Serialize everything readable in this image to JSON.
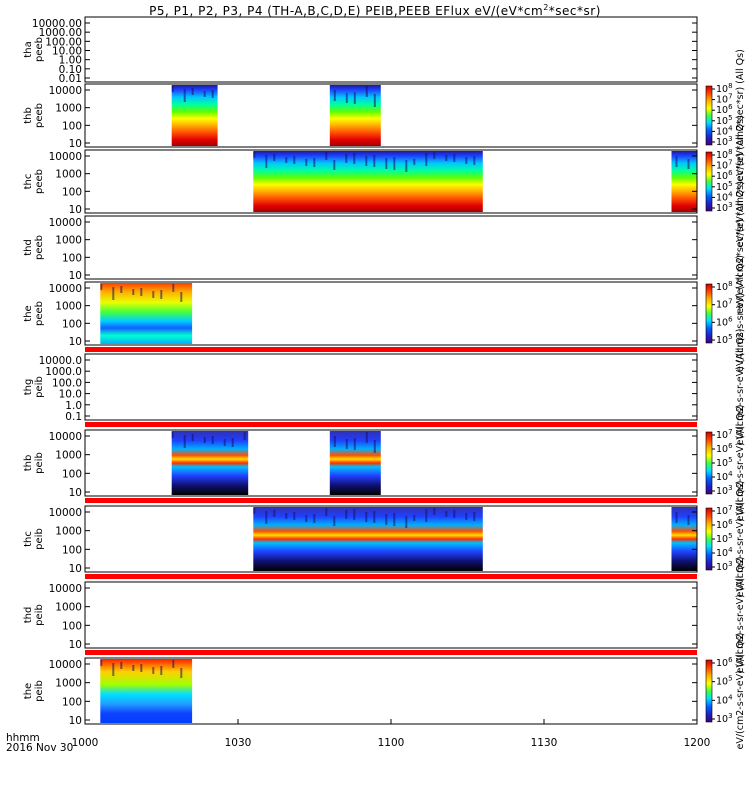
{
  "title_parts": [
    "P5, P1, P2, P3, P4 (TH-A,B,C,D,E) PEIB,PEEB EFlux eV/(eV*cm",
    "2",
    "*sec*sr)"
  ],
  "chart_data": {
    "type": "heatmap",
    "x_axis": {
      "range": [
        "10:00",
        "12:00"
      ],
      "tick_labels": [
        "1000",
        "1030",
        "1100",
        "1130",
        "1200"
      ],
      "label_lines": [
        "hhmm",
        "2016 Nov 30"
      ]
    },
    "panels": [
      {
        "probe": "tha",
        "instrument": "peeb",
        "y_ticks": [
          "10000.00",
          "1000.00",
          "100.00",
          "10.00",
          "1.00",
          "0.10",
          "0.01"
        ],
        "y_scale": "log",
        "segments": [],
        "red_band": false,
        "colorbar": null,
        "colorbar_label": ""
      },
      {
        "probe": "thb",
        "instrument": "peeb",
        "y_ticks": [
          "10000",
          "1000",
          "100",
          "10"
        ],
        "y_scale": "log",
        "segments": [
          [
            "10:17",
            "10:26"
          ],
          [
            "10:48",
            "10:58"
          ]
        ],
        "style": "electron",
        "red_band": false,
        "colorbar": {
          "ticks": [
            "10^8",
            "10^7",
            "10^6",
            "10^5",
            "10^4",
            "10^3"
          ],
          "max_exp": 8,
          "min_exp": 3
        },
        "colorbar_label": "eV/(eV*cm2*sec*sr) (All Qs)"
      },
      {
        "probe": "thc",
        "instrument": "peeb",
        "y_ticks": [
          "10000",
          "1000",
          "100",
          "10"
        ],
        "y_scale": "log",
        "segments": [
          [
            "10:33",
            "11:18"
          ],
          [
            "11:55",
            "12:00"
          ]
        ],
        "style": "electron",
        "red_band": false,
        "colorbar": {
          "ticks": [
            "10^8",
            "10^7",
            "10^6",
            "10^5",
            "10^4",
            "10^3"
          ],
          "max_exp": 8,
          "min_exp": 3
        },
        "colorbar_label": "eV/(eV*cm2*sec*sr) (All Qs)"
      },
      {
        "probe": "thd",
        "instrument": "peeb",
        "y_ticks": [
          "10000",
          "1000",
          "100",
          "10"
        ],
        "y_scale": "log",
        "segments": [],
        "red_band": false,
        "colorbar": null,
        "colorbar_label": "eV/(eV*cm2*sec*sr) (All Qs)"
      },
      {
        "probe": "the",
        "instrument": "peeb",
        "y_ticks": [
          "10000",
          "1000",
          "100",
          "10"
        ],
        "y_scale": "log",
        "segments": [
          [
            "10:03",
            "10:21"
          ]
        ],
        "style": "electron",
        "red_band": true,
        "colorbar": {
          "ticks": [
            "10^8",
            "10^7",
            "10^6",
            "10^5"
          ],
          "max_exp": 8,
          "min_exp": 5
        },
        "colorbar_label": "eV/(cm2-s-sr-eV) (All Qs)"
      },
      {
        "probe": "thg",
        "instrument": "peib",
        "y_ticks": [
          "10000.0",
          "1000.0",
          "100.0",
          "10.0",
          "1.0",
          "0.1"
        ],
        "y_scale": "log",
        "segments": [],
        "red_band": true,
        "colorbar": null,
        "colorbar_label": "eV/(cm2-s-sr-eV) (All Qs)"
      },
      {
        "probe": "thb",
        "instrument": "peib",
        "y_ticks": [
          "10000",
          "1000",
          "100",
          "10"
        ],
        "y_scale": "log",
        "segments": [
          [
            "10:17",
            "10:32"
          ],
          [
            "10:48",
            "10:58"
          ]
        ],
        "style": "ion",
        "red_band": true,
        "colorbar": {
          "ticks": [
            "10^7",
            "10^6",
            "10^5",
            "10^4",
            "10^3"
          ],
          "max_exp": 7,
          "min_exp": 3
        },
        "colorbar_label": "eV/(cm2-s-sr-eV) (All Qs)"
      },
      {
        "probe": "thc",
        "instrument": "peib",
        "y_ticks": [
          "10000",
          "1000",
          "100",
          "10"
        ],
        "y_scale": "log",
        "segments": [
          [
            "10:33",
            "11:18"
          ],
          [
            "11:55",
            "12:00"
          ]
        ],
        "style": "ion",
        "red_band": true,
        "colorbar": {
          "ticks": [
            "10^7",
            "10^6",
            "10^5",
            "10^4",
            "10^3"
          ],
          "max_exp": 7,
          "min_exp": 3
        },
        "colorbar_label": "eV/(cm2-s-sr-eV) (All Qs)"
      },
      {
        "probe": "thd",
        "instrument": "peib",
        "y_ticks": [
          "10000",
          "1000",
          "100",
          "10"
        ],
        "y_scale": "log",
        "segments": [],
        "red_band": true,
        "colorbar": null,
        "colorbar_label": "eV/(cm2-s-sr-eV) (All Qs)"
      },
      {
        "probe": "the",
        "instrument": "peib",
        "y_ticks": [
          "10000",
          "1000",
          "100",
          "10"
        ],
        "y_scale": "log",
        "segments": [
          [
            "10:03",
            "10:21"
          ]
        ],
        "style": "ion",
        "red_band": false,
        "colorbar": {
          "ticks": [
            "10^6",
            "10^5",
            "10^4",
            "10^3"
          ],
          "max_exp": 6,
          "min_exp": 3
        },
        "colorbar_label": "eV/(cm2-s-sr-eV) (All Qs)"
      }
    ]
  }
}
